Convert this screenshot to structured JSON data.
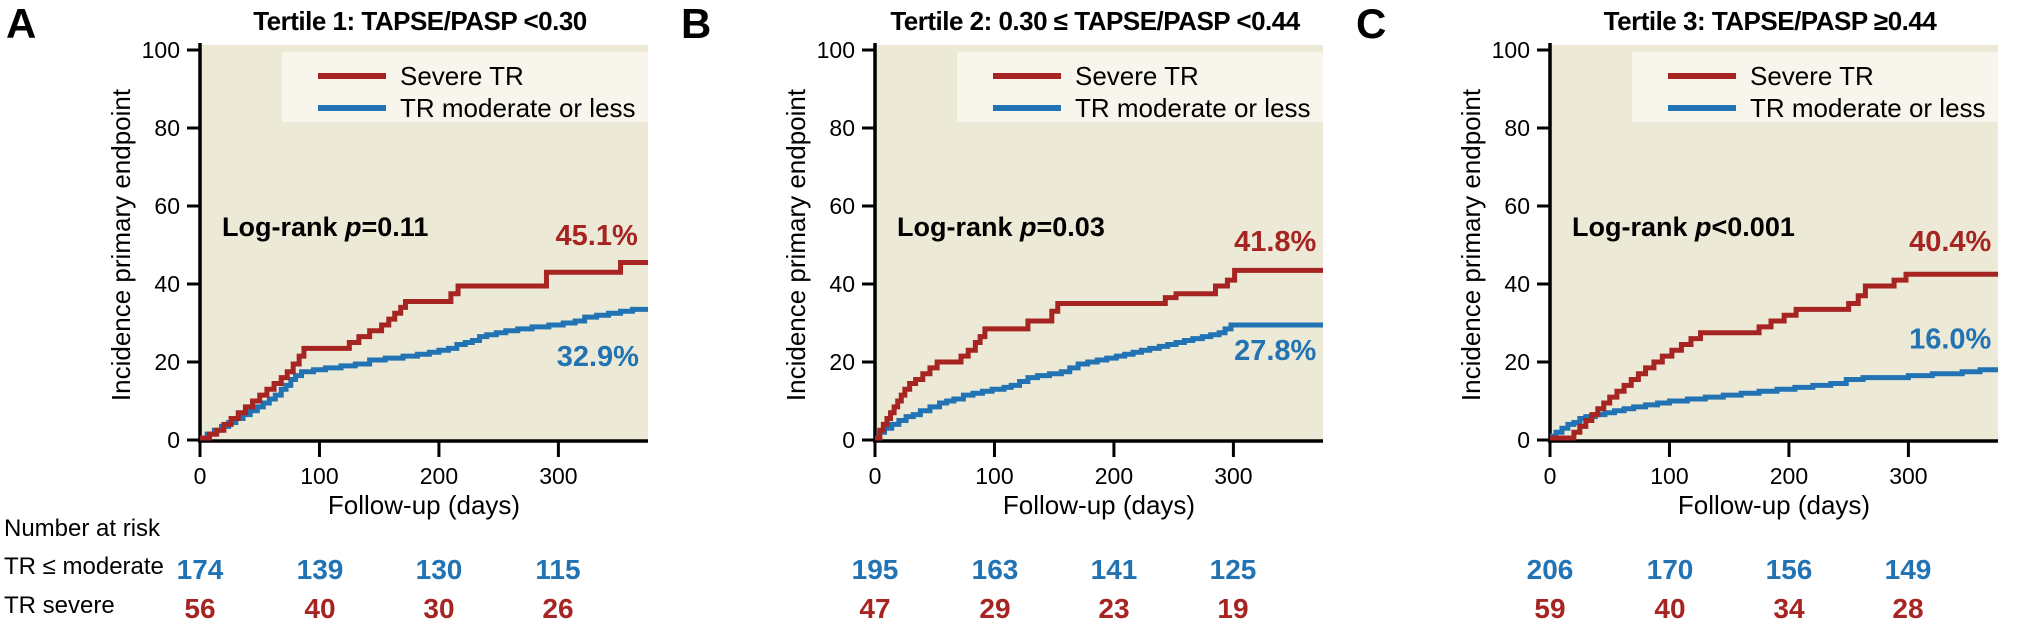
{
  "colors": {
    "severe": "#A62421",
    "moderate": "#2273B4",
    "plot_bg": "#ECE9D6",
    "legend_bg": "#F8F6EC",
    "axis": "#000000"
  },
  "legend": {
    "severe_label": "Severe TR",
    "moderate_label": "TR moderate or less"
  },
  "axes": {
    "ylabel": "Incidence primary endpoint",
    "xlabel": "Follow-up (days)",
    "yticks": [
      0,
      20,
      40,
      60,
      80,
      100
    ],
    "xticks": [
      0,
      100,
      200,
      300
    ],
    "xmax": 375,
    "ymax": 100,
    "grid": false,
    "legend_position": "top-right"
  },
  "risk_table": {
    "header": "Number at risk",
    "row_moderate_label": "TR ≤ moderate",
    "row_severe_label": "TR severe"
  },
  "chart_data": [
    {
      "type": "line",
      "panel": "A",
      "title": "Tertile 1: TAPSE/PASP <0.30",
      "logrank": {
        "prefix": "Log-rank ",
        "p": "p",
        "value": "=0.11"
      },
      "annotations": {
        "severe": {
          "text": "45.1%",
          "day": 332,
          "pct": 50
        },
        "moderate": {
          "text": "32.9%",
          "day": 333,
          "pct": 19
        }
      },
      "series": [
        {
          "name": "TR moderate or less",
          "color_key": "moderate",
          "steps": [
            [
              0,
              0.5
            ],
            [
              6,
              1.5
            ],
            [
              12,
              2.5
            ],
            [
              18,
              3.5
            ],
            [
              24,
              4.5
            ],
            [
              30,
              5.5
            ],
            [
              36,
              6.5
            ],
            [
              42,
              7.5
            ],
            [
              48,
              8.5
            ],
            [
              53,
              9.5
            ],
            [
              58,
              10.5
            ],
            [
              63,
              11.5
            ],
            [
              68,
              13
            ],
            [
              72,
              14
            ],
            [
              76,
              15.5
            ],
            [
              80,
              16.5
            ],
            [
              85,
              17.5
            ],
            [
              95,
              18
            ],
            [
              105,
              18.5
            ],
            [
              118,
              19
            ],
            [
              130,
              19.5
            ],
            [
              142,
              20.5
            ],
            [
              155,
              21
            ],
            [
              170,
              21.5
            ],
            [
              182,
              22
            ],
            [
              192,
              22.5
            ],
            [
              200,
              23
            ],
            [
              208,
              23.5
            ],
            [
              215,
              24.5
            ],
            [
              222,
              25
            ],
            [
              228,
              25.5
            ],
            [
              234,
              26.5
            ],
            [
              240,
              27
            ],
            [
              248,
              27.5
            ],
            [
              256,
              28
            ],
            [
              266,
              28.5
            ],
            [
              278,
              29
            ],
            [
              292,
              29.5
            ],
            [
              304,
              30
            ],
            [
              314,
              30.5
            ],
            [
              322,
              31.5
            ],
            [
              332,
              32
            ],
            [
              342,
              32.5
            ],
            [
              352,
              33
            ],
            [
              362,
              33.5
            ]
          ]
        },
        {
          "name": "Severe TR",
          "color_key": "severe",
          "steps": [
            [
              0,
              0.5
            ],
            [
              8,
              1.5
            ],
            [
              14,
              2.5
            ],
            [
              20,
              4
            ],
            [
              26,
              5.5
            ],
            [
              32,
              7
            ],
            [
              38,
              8.5
            ],
            [
              44,
              10
            ],
            [
              50,
              11.5
            ],
            [
              56,
              13
            ],
            [
              62,
              14.5
            ],
            [
              68,
              16
            ],
            [
              73,
              17.5
            ],
            [
              78,
              19.5
            ],
            [
              83,
              21.5
            ],
            [
              87,
              23.5
            ],
            [
              125,
              25
            ],
            [
              133,
              26.5
            ],
            [
              142,
              28
            ],
            [
              152,
              29.5
            ],
            [
              158,
              31
            ],
            [
              163,
              32.5
            ],
            [
              168,
              34
            ],
            [
              172,
              35.5
            ],
            [
              210,
              37.5
            ],
            [
              216,
              39.5
            ],
            [
              290,
              43
            ],
            [
              352,
              45.5
            ]
          ]
        }
      ],
      "number_at_risk": {
        "days": [
          0,
          100,
          200,
          300
        ],
        "moderate": [
          174,
          139,
          130,
          115
        ],
        "severe": [
          56,
          40,
          30,
          26
        ]
      }
    },
    {
      "type": "line",
      "panel": "B",
      "title": "Tertile 2: 0.30 ≤ TAPSE/PASP <0.44",
      "logrank": {
        "prefix": "Log-rank ",
        "p": "p",
        "value": "=0.03"
      },
      "annotations": {
        "severe": {
          "text": "41.8%",
          "day": 335,
          "pct": 48.5
        },
        "moderate": {
          "text": "27.8%",
          "day": 335,
          "pct": 20.5
        }
      },
      "series": [
        {
          "name": "TR moderate or less",
          "color_key": "moderate",
          "steps": [
            [
              0,
              0.5
            ],
            [
              4,
              2
            ],
            [
              8,
              3
            ],
            [
              14,
              4
            ],
            [
              20,
              5
            ],
            [
              26,
              6
            ],
            [
              32,
              6.5
            ],
            [
              38,
              7.5
            ],
            [
              46,
              8.5
            ],
            [
              54,
              9.5
            ],
            [
              60,
              10
            ],
            [
              66,
              10.5
            ],
            [
              74,
              11.5
            ],
            [
              82,
              12
            ],
            [
              90,
              12.5
            ],
            [
              98,
              13
            ],
            [
              108,
              13.5
            ],
            [
              114,
              14
            ],
            [
              121,
              15
            ],
            [
              128,
              16
            ],
            [
              136,
              16.5
            ],
            [
              146,
              17
            ],
            [
              156,
              17.5
            ],
            [
              163,
              18.5
            ],
            [
              170,
              19.5
            ],
            [
              178,
              20
            ],
            [
              186,
              20.5
            ],
            [
              194,
              21
            ],
            [
              202,
              21.5
            ],
            [
              209,
              22
            ],
            [
              216,
              22.5
            ],
            [
              223,
              23
            ],
            [
              230,
              23.5
            ],
            [
              238,
              24
            ],
            [
              245,
              24.5
            ],
            [
              252,
              25
            ],
            [
              259,
              25.5
            ],
            [
              266,
              26
            ],
            [
              274,
              26.5
            ],
            [
              281,
              27
            ],
            [
              288,
              27.5
            ],
            [
              293,
              28.5
            ],
            [
              298,
              29.5
            ]
          ]
        },
        {
          "name": "Severe TR",
          "color_key": "severe",
          "steps": [
            [
              0,
              0.5
            ],
            [
              4,
              2.5
            ],
            [
              7,
              4
            ],
            [
              10,
              5.5
            ],
            [
              13,
              7
            ],
            [
              16,
              8.5
            ],
            [
              19,
              10
            ],
            [
              22,
              11.5
            ],
            [
              25,
              13
            ],
            [
              29,
              14.5
            ],
            [
              34,
              15.5
            ],
            [
              40,
              17
            ],
            [
              46,
              18.5
            ],
            [
              52,
              20
            ],
            [
              72,
              21.5
            ],
            [
              78,
              23
            ],
            [
              84,
              25
            ],
            [
              88,
              26.5
            ],
            [
              92,
              28.5
            ],
            [
              128,
              30.5
            ],
            [
              148,
              33
            ],
            [
              153,
              35
            ],
            [
              243,
              36.5
            ],
            [
              252,
              37.5
            ],
            [
              285,
              39.5
            ],
            [
              295,
              41
            ],
            [
              301,
              43.5
            ]
          ]
        }
      ],
      "number_at_risk": {
        "days": [
          0,
          100,
          200,
          300
        ],
        "moderate": [
          195,
          163,
          141,
          125
        ],
        "severe": [
          47,
          29,
          23,
          19
        ]
      }
    },
    {
      "type": "line",
      "panel": "C",
      "title": "Tertile 3: TAPSE/PASP ≥0.44",
      "logrank": {
        "prefix": "Log-rank ",
        "p": "p",
        "value": "<0.001"
      },
      "annotations": {
        "severe": {
          "text": "40.4%",
          "day": 335,
          "pct": 48.5
        },
        "moderate": {
          "text": "16.0%",
          "day": 335,
          "pct": 23.5
        }
      },
      "series": [
        {
          "name": "TR moderate or less",
          "color_key": "moderate",
          "steps": [
            [
              0,
              1
            ],
            [
              5,
              2
            ],
            [
              10,
              3
            ],
            [
              15,
              4
            ],
            [
              20,
              4.5
            ],
            [
              25,
              5.5
            ],
            [
              30,
              6
            ],
            [
              38,
              6.5
            ],
            [
              46,
              7
            ],
            [
              54,
              7.5
            ],
            [
              62,
              8
            ],
            [
              70,
              8.5
            ],
            [
              80,
              9
            ],
            [
              90,
              9.5
            ],
            [
              100,
              10
            ],
            [
              115,
              10.5
            ],
            [
              130,
              11
            ],
            [
              145,
              11.5
            ],
            [
              160,
              12
            ],
            [
              175,
              12.5
            ],
            [
              190,
              13
            ],
            [
              205,
              13.5
            ],
            [
              220,
              14
            ],
            [
              235,
              14.5
            ],
            [
              248,
              15.5
            ],
            [
              262,
              16
            ],
            [
              300,
              16.5
            ],
            [
              320,
              17
            ],
            [
              345,
              17.5
            ],
            [
              360,
              18
            ]
          ]
        },
        {
          "name": "Severe TR",
          "color_key": "severe",
          "steps": [
            [
              0,
              0.5
            ],
            [
              20,
              2
            ],
            [
              25,
              3.5
            ],
            [
              30,
              5
            ],
            [
              35,
              6.5
            ],
            [
              40,
              8
            ],
            [
              45,
              9.5
            ],
            [
              50,
              11
            ],
            [
              56,
              12.5
            ],
            [
              62,
              14
            ],
            [
              68,
              15.5
            ],
            [
              74,
              17
            ],
            [
              80,
              18.5
            ],
            [
              87,
              20
            ],
            [
              94,
              21.5
            ],
            [
              102,
              23
            ],
            [
              110,
              24.5
            ],
            [
              118,
              26
            ],
            [
              126,
              27.5
            ],
            [
              175,
              29
            ],
            [
              185,
              30.5
            ],
            [
              196,
              32
            ],
            [
              206,
              33.5
            ],
            [
              250,
              35
            ],
            [
              258,
              37
            ],
            [
              264,
              39.5
            ],
            [
              288,
              41
            ],
            [
              298,
              42.5
            ]
          ]
        }
      ],
      "number_at_risk": {
        "days": [
          0,
          100,
          200,
          300
        ],
        "moderate": [
          206,
          170,
          156,
          149
        ],
        "severe": [
          59,
          40,
          34,
          28
        ]
      }
    }
  ]
}
